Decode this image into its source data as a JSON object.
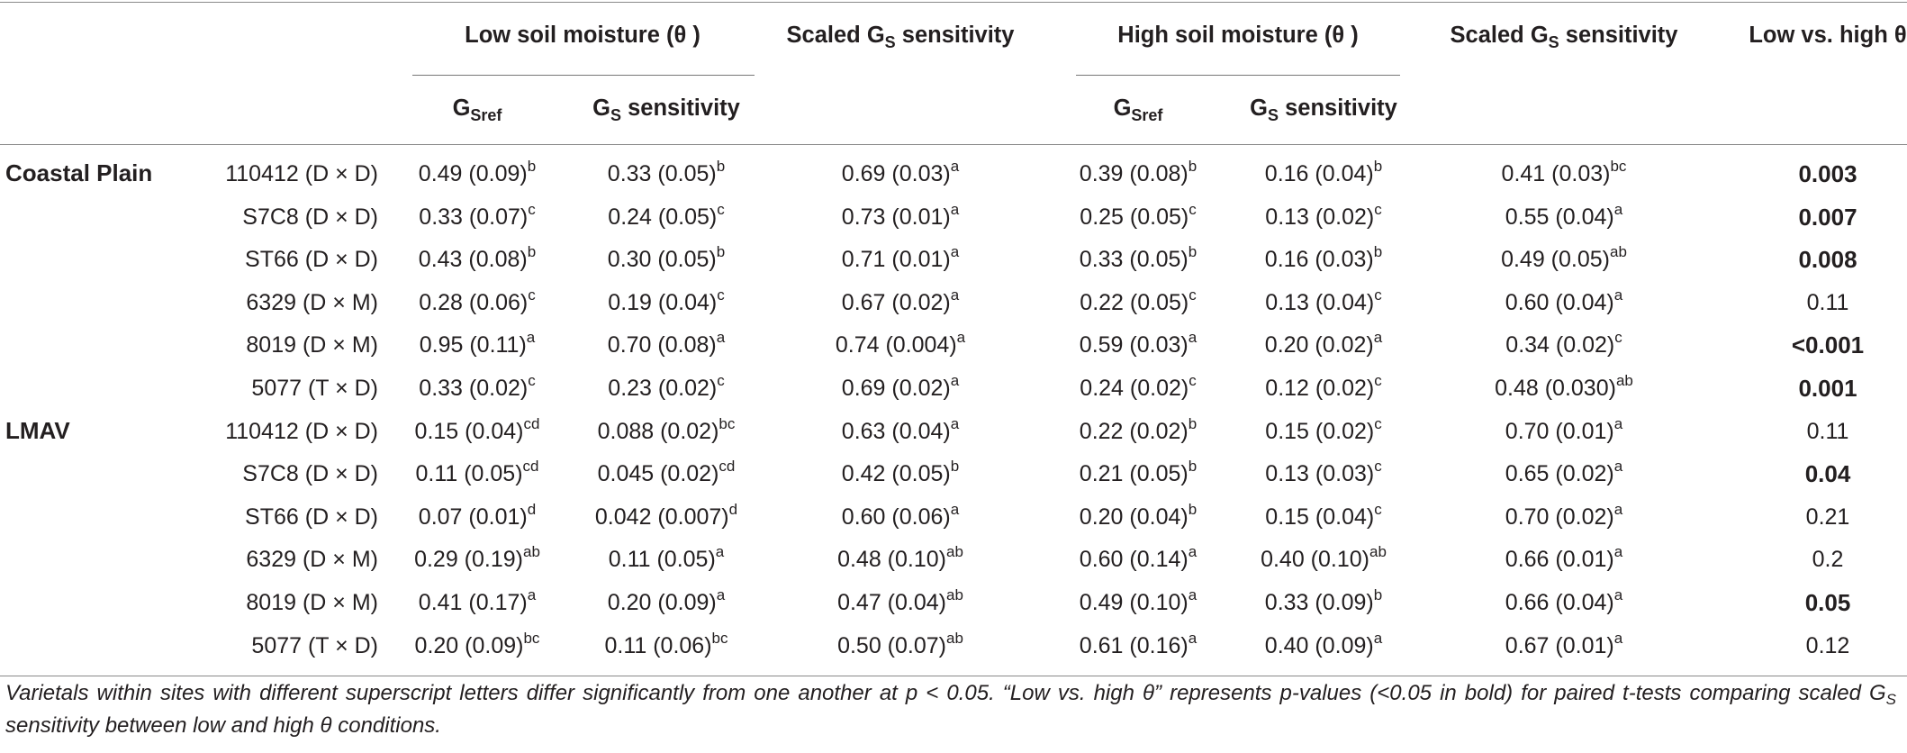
{
  "header": {
    "low_group": "Low soil moisture (θ )",
    "high_group": "High soil moisture (θ )",
    "scaled_sens": "Scaled G",
    "scaled_sens_sub": "S",
    "scaled_sens_tail": " sensitivity",
    "gsref_main": "G",
    "gsref_sub": "Sref",
    "gs_sens_main": "G",
    "gs_sens_sub": "S",
    "gs_sens_tail": " sensitivity",
    "low_vs_high": "Low vs. high θ"
  },
  "sites": [
    {
      "name": "Coastal Plain",
      "rows": [
        {
          "varietal": "110412 (D × D)",
          "low_gsref": "0.49 (0.09)",
          "low_gsref_sup": "b",
          "low_sens": "0.33 (0.05)",
          "low_sens_sup": "b",
          "low_scaled": "0.69 (0.03)",
          "low_scaled_sup": "a",
          "high_gsref": "0.39 (0.08)",
          "high_gsref_sup": "b",
          "high_sens": "0.16 (0.04)",
          "high_sens_sup": "b",
          "high_scaled": "0.41 (0.03)",
          "high_scaled_sup": "bc",
          "p": "0.003",
          "p_bold": true
        },
        {
          "varietal": "S7C8 (D × D)",
          "low_gsref": "0.33 (0.07)",
          "low_gsref_sup": "c",
          "low_sens": "0.24 (0.05)",
          "low_sens_sup": "c",
          "low_scaled": "0.73 (0.01)",
          "low_scaled_sup": "a",
          "high_gsref": "0.25 (0.05)",
          "high_gsref_sup": "c",
          "high_sens": "0.13 (0.02)",
          "high_sens_sup": "c",
          "high_scaled": "0.55 (0.04)",
          "high_scaled_sup": "a",
          "p": "0.007",
          "p_bold": true
        },
        {
          "varietal": "ST66 (D × D)",
          "low_gsref": "0.43 (0.08)",
          "low_gsref_sup": "b",
          "low_sens": "0.30 (0.05)",
          "low_sens_sup": "b",
          "low_scaled": "0.71 (0.01)",
          "low_scaled_sup": "a",
          "high_gsref": "0.33 (0.05)",
          "high_gsref_sup": "b",
          "high_sens": "0.16 (0.03)",
          "high_sens_sup": "b",
          "high_scaled": "0.49 (0.05)",
          "high_scaled_sup": "ab",
          "p": "0.008",
          "p_bold": true
        },
        {
          "varietal": "6329 (D × M)",
          "low_gsref": "0.28 (0.06)",
          "low_gsref_sup": "c",
          "low_sens": "0.19 (0.04)",
          "low_sens_sup": "c",
          "low_scaled": "0.67 (0.02)",
          "low_scaled_sup": "a",
          "high_gsref": "0.22 (0.05)",
          "high_gsref_sup": "c",
          "high_sens": "0.13 (0.04)",
          "high_sens_sup": "c",
          "high_scaled": "0.60 (0.04)",
          "high_scaled_sup": "a",
          "p": "0.11",
          "p_bold": false
        },
        {
          "varietal": "8019 (D × M)",
          "low_gsref": "0.95 (0.11)",
          "low_gsref_sup": "a",
          "low_sens": "0.70 (0.08)",
          "low_sens_sup": "a",
          "low_scaled": "0.74 (0.004)",
          "low_scaled_sup": "a",
          "high_gsref": "0.59 (0.03)",
          "high_gsref_sup": "a",
          "high_sens": "0.20 (0.02)",
          "high_sens_sup": "a",
          "high_scaled": "0.34 (0.02)",
          "high_scaled_sup": "c",
          "p": "<0.001",
          "p_bold": true
        },
        {
          "varietal": "5077 (T × D)",
          "low_gsref": "0.33 (0.02)",
          "low_gsref_sup": "c",
          "low_sens": "0.23 (0.02)",
          "low_sens_sup": "c",
          "low_scaled": "0.69 (0.02)",
          "low_scaled_sup": "a",
          "high_gsref": "0.24 (0.02)",
          "high_gsref_sup": "c",
          "high_sens": "0.12 (0.02)",
          "high_sens_sup": "c",
          "high_scaled": "0.48 (0.030)",
          "high_scaled_sup": "ab",
          "p": "0.001",
          "p_bold": true
        }
      ]
    },
    {
      "name": "LMAV",
      "rows": [
        {
          "varietal": "110412 (D × D)",
          "low_gsref": "0.15 (0.04)",
          "low_gsref_sup": "cd",
          "low_sens": "0.088 (0.02)",
          "low_sens_sup": "bc",
          "low_scaled": "0.63 (0.04)",
          "low_scaled_sup": "a",
          "high_gsref": "0.22 (0.02)",
          "high_gsref_sup": "b",
          "high_sens": "0.15 (0.02)",
          "high_sens_sup": "c",
          "high_scaled": "0.70 (0.01)",
          "high_scaled_sup": "a",
          "p": "0.11",
          "p_bold": false
        },
        {
          "varietal": "S7C8 (D × D)",
          "low_gsref": "0.11 (0.05)",
          "low_gsref_sup": "cd",
          "low_sens": "0.045 (0.02)",
          "low_sens_sup": "cd",
          "low_scaled": "0.42 (0.05)",
          "low_scaled_sup": "b",
          "high_gsref": "0.21 (0.05)",
          "high_gsref_sup": "b",
          "high_sens": "0.13 (0.03)",
          "high_sens_sup": "c",
          "high_scaled": "0.65 (0.02)",
          "high_scaled_sup": "a",
          "p": "0.04",
          "p_bold": true
        },
        {
          "varietal": "ST66 (D × D)",
          "low_gsref": "0.07 (0.01)",
          "low_gsref_sup": "d",
          "low_sens": "0.042 (0.007)",
          "low_sens_sup": "d",
          "low_scaled": "0.60 (0.06)",
          "low_scaled_sup": "a",
          "high_gsref": "0.20 (0.04)",
          "high_gsref_sup": "b",
          "high_sens": "0.15 (0.04)",
          "high_sens_sup": "c",
          "high_scaled": "0.70 (0.02)",
          "high_scaled_sup": "a",
          "p": "0.21",
          "p_bold": false
        },
        {
          "varietal": "6329 (D × M)",
          "low_gsref": "0.29 (0.19)",
          "low_gsref_sup": "ab",
          "low_sens": "0.11 (0.05)",
          "low_sens_sup": "a",
          "low_scaled": "0.48 (0.10)",
          "low_scaled_sup": "ab",
          "high_gsref": "0.60 (0.14)",
          "high_gsref_sup": "a",
          "high_sens": "0.40 (0.10)",
          "high_sens_sup": "ab",
          "high_scaled": "0.66 (0.01)",
          "high_scaled_sup": "a",
          "p": "0.2",
          "p_bold": false
        },
        {
          "varietal": "8019 (D × M)",
          "low_gsref": "0.41 (0.17)",
          "low_gsref_sup": "a",
          "low_sens": "0.20 (0.09)",
          "low_sens_sup": "a",
          "low_scaled": "0.47 (0.04)",
          "low_scaled_sup": "ab",
          "high_gsref": "0.49 (0.10)",
          "high_gsref_sup": "a",
          "high_sens": "0.33 (0.09)",
          "high_sens_sup": "b",
          "high_scaled": "0.66 (0.04)",
          "high_scaled_sup": "a",
          "p": "0.05",
          "p_bold": true
        },
        {
          "varietal": "5077 (T × D)",
          "low_gsref": "0.20 (0.09)",
          "low_gsref_sup": "bc",
          "low_sens": "0.11 (0.06)",
          "low_sens_sup": "bc",
          "low_scaled": "0.50 (0.07)",
          "low_scaled_sup": "ab",
          "high_gsref": "0.61 (0.16)",
          "high_gsref_sup": "a",
          "high_sens": "0.40 (0.09)",
          "high_sens_sup": "a",
          "high_scaled": "0.67 (0.01)",
          "high_scaled_sup": "a",
          "p": "0.12",
          "p_bold": false
        }
      ]
    }
  ],
  "footnote": {
    "part1": "Varietals within sites with different superscript letters differ significantly from one another at p < 0.05. “Low vs. high θ” represents p-values (<0.05 in bold) for paired t-tests comparing scaled G",
    "sub": "S",
    "part2": " sensitivity between low and high θ  conditions."
  }
}
